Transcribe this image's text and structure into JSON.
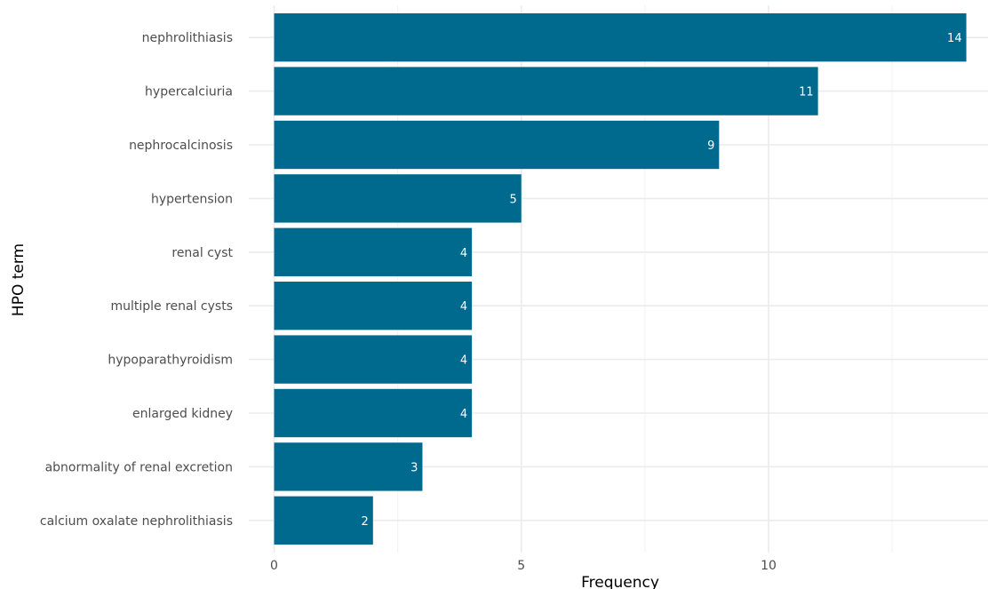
{
  "chart_data": {
    "type": "bar",
    "orientation": "horizontal",
    "categories": [
      "nephrolithiasis",
      "hypercalciuria",
      "nephrocalcinosis",
      "hypertension",
      "renal cyst",
      "multiple renal cysts",
      "hypoparathyroidism",
      "enlarged kidney",
      "abnormality of renal excretion",
      "calcium oxalate nephrolithiasis"
    ],
    "values": [
      14,
      11,
      9,
      5,
      4,
      4,
      4,
      4,
      3,
      2
    ],
    "xlabel": "Frequency",
    "ylabel": "HPO term",
    "xlim": [
      0,
      14
    ],
    "xticks": [
      0,
      5,
      10
    ],
    "grid": true,
    "bar_color": "#006a8e",
    "label_color": "#ffffff",
    "grid_major_color": "#ebebeb",
    "grid_minor_color": "#f4f4f4"
  }
}
